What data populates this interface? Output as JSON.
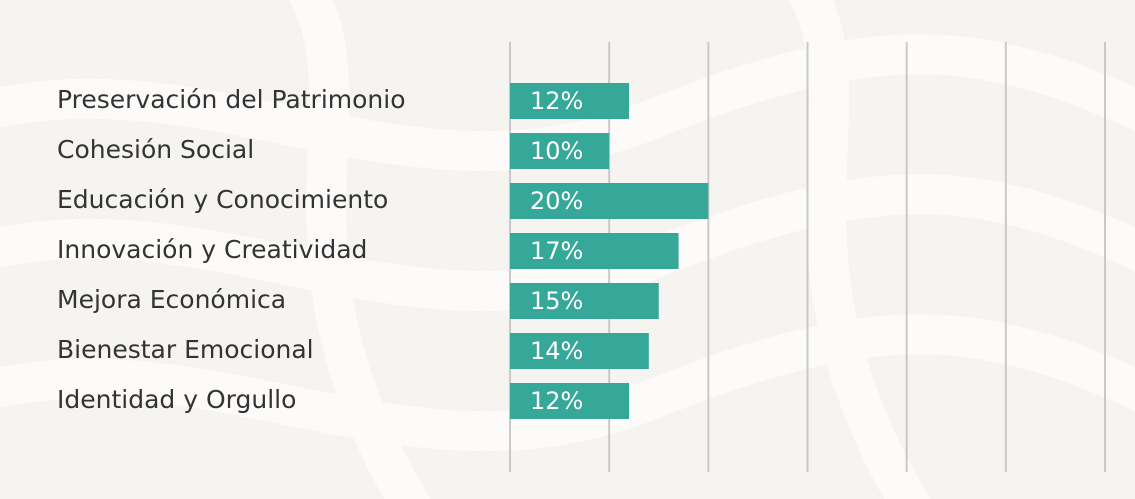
{
  "chart_data": {
    "type": "bar",
    "orientation": "horizontal",
    "categories": [
      "Preservación del Patrimonio",
      "Cohesión Social",
      "Educación y Conocimiento",
      "Innovación y Creatividad",
      "Mejora Económica",
      "Bienestar Emocional",
      "Identidad y Orgullo"
    ],
    "values": [
      12,
      10,
      20,
      17,
      15,
      14,
      12
    ],
    "value_labels": [
      "12%",
      "10%",
      "20%",
      "17%",
      "15%",
      "14%",
      "12%"
    ],
    "color": "#36a89a",
    "xlim": [
      0,
      60
    ],
    "xticks": [
      0,
      10,
      20,
      30,
      40,
      50,
      60
    ],
    "grid": true
  }
}
